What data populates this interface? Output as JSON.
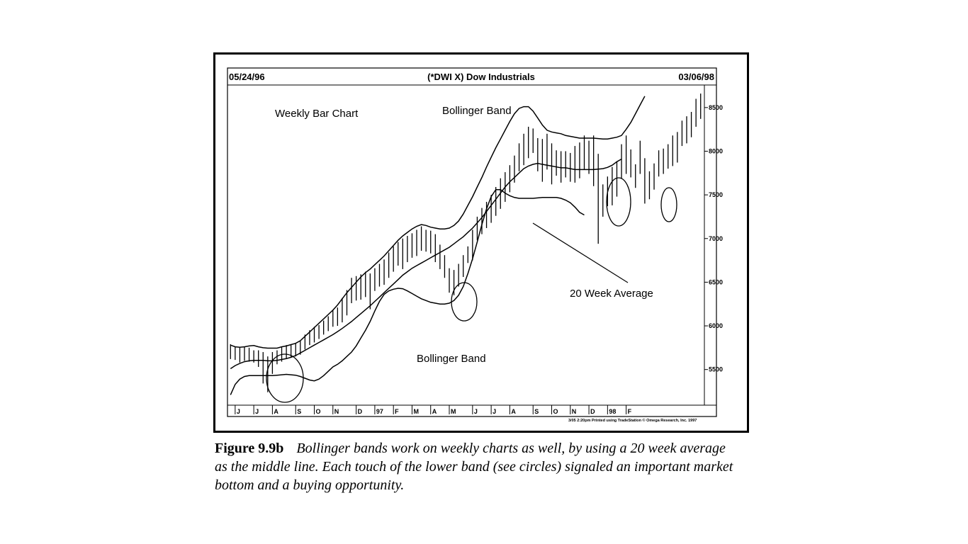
{
  "chart_data": {
    "type": "bar",
    "title": "(*DWI X) Dow Industrials",
    "start_date": "05/24/96",
    "end_date": "03/06/98",
    "ylim": [
      5100,
      8750
    ],
    "y_ticks": [
      5500,
      6000,
      6500,
      7000,
      7500,
      8000,
      8500
    ],
    "y_tick_labels": [
      "5500",
      "6000",
      "6500",
      "7000",
      "7500",
      "8000",
      "8500"
    ],
    "x_ticks": [
      {
        "week": 1,
        "label": "J"
      },
      {
        "week": 5,
        "label": "J"
      },
      {
        "week": 9,
        "label": "A"
      },
      {
        "week": 14,
        "label": "S"
      },
      {
        "week": 18,
        "label": "O"
      },
      {
        "week": 22,
        "label": "N"
      },
      {
        "week": 27,
        "label": "D"
      },
      {
        "week": 31,
        "label": "97"
      },
      {
        "week": 35,
        "label": "F"
      },
      {
        "week": 39,
        "label": "M"
      },
      {
        "week": 43,
        "label": "A"
      },
      {
        "week": 47,
        "label": "M"
      },
      {
        "week": 52,
        "label": "J"
      },
      {
        "week": 56,
        "label": "J"
      },
      {
        "week": 60,
        "label": "A"
      },
      {
        "week": 65,
        "label": "S"
      },
      {
        "week": 69,
        "label": "O"
      },
      {
        "week": 73,
        "label": "N"
      },
      {
        "week": 77,
        "label": "D"
      },
      {
        "week": 81,
        "label": "98"
      },
      {
        "week": 85,
        "label": "F"
      }
    ],
    "bars": [
      {
        "high": 5790,
        "low": 5620
      },
      {
        "high": 5760,
        "low": 5610
      },
      {
        "high": 5750,
        "low": 5580
      },
      {
        "high": 5760,
        "low": 5600
      },
      {
        "high": 5750,
        "low": 5590
      },
      {
        "high": 5720,
        "low": 5580
      },
      {
        "high": 5720,
        "low": 5530
      },
      {
        "high": 5700,
        "low": 5340
      },
      {
        "high": 5650,
        "low": 5240
      },
      {
        "high": 5700,
        "low": 5450
      },
      {
        "high": 5720,
        "low": 5560
      },
      {
        "high": 5760,
        "low": 5590
      },
      {
        "high": 5780,
        "low": 5620
      },
      {
        "high": 5790,
        "low": 5640
      },
      {
        "high": 5800,
        "low": 5650
      },
      {
        "high": 5830,
        "low": 5670
      },
      {
        "high": 5900,
        "low": 5730
      },
      {
        "high": 5950,
        "low": 5780
      },
      {
        "high": 5990,
        "low": 5810
      },
      {
        "high": 6010,
        "low": 5850
      },
      {
        "high": 6060,
        "low": 5900
      },
      {
        "high": 6110,
        "low": 5940
      },
      {
        "high": 6180,
        "low": 5990
      },
      {
        "high": 6210,
        "low": 6000
      },
      {
        "high": 6320,
        "low": 6040
      },
      {
        "high": 6410,
        "low": 6120
      },
      {
        "high": 6550,
        "low": 6260
      },
      {
        "high": 6570,
        "low": 6290
      },
      {
        "high": 6590,
        "low": 6300
      },
      {
        "high": 6620,
        "low": 6330
      },
      {
        "high": 6600,
        "low": 6190
      },
      {
        "high": 6660,
        "low": 6400
      },
      {
        "high": 6710,
        "low": 6450
      },
      {
        "high": 6760,
        "low": 6470
      },
      {
        "high": 6840,
        "low": 6550
      },
      {
        "high": 6910,
        "low": 6620
      },
      {
        "high": 6960,
        "low": 6690
      },
      {
        "high": 7000,
        "low": 6650
      },
      {
        "high": 7030,
        "low": 6730
      },
      {
        "high": 7060,
        "low": 6780
      },
      {
        "high": 7100,
        "low": 6800
      },
      {
        "high": 7140,
        "low": 6860
      },
      {
        "high": 7100,
        "low": 6850
      },
      {
        "high": 7090,
        "low": 6830
      },
      {
        "high": 7050,
        "low": 6730
      },
      {
        "high": 6930,
        "low": 6650
      },
      {
        "high": 6810,
        "low": 6550
      },
      {
        "high": 6660,
        "low": 6380
      },
      {
        "high": 6640,
        "low": 6350
      },
      {
        "high": 6710,
        "low": 6450
      },
      {
        "high": 6810,
        "low": 6560
      },
      {
        "high": 6910,
        "low": 6720
      },
      {
        "high": 7100,
        "low": 6750
      },
      {
        "high": 7250,
        "low": 6980
      },
      {
        "high": 7350,
        "low": 7050
      },
      {
        "high": 7420,
        "low": 7120
      },
      {
        "high": 7500,
        "low": 7180
      },
      {
        "high": 7590,
        "low": 7260
      },
      {
        "high": 7690,
        "low": 7340
      },
      {
        "high": 7760,
        "low": 7420
      },
      {
        "high": 7840,
        "low": 7530
      },
      {
        "high": 7950,
        "low": 7640
      },
      {
        "high": 8090,
        "low": 7770
      },
      {
        "high": 8200,
        "low": 7840
      },
      {
        "high": 8280,
        "low": 7920
      },
      {
        "high": 8260,
        "low": 7980
      },
      {
        "high": 8150,
        "low": 7770
      },
      {
        "high": 8140,
        "low": 7650
      },
      {
        "high": 8200,
        "low": 7790
      },
      {
        "high": 8090,
        "low": 7620
      },
      {
        "high": 8010,
        "low": 7720
      },
      {
        "high": 8000,
        "low": 7640
      },
      {
        "high": 8000,
        "low": 7700
      },
      {
        "high": 7980,
        "low": 7650
      },
      {
        "high": 8060,
        "low": 7640
      },
      {
        "high": 8100,
        "low": 7690
      },
      {
        "high": 8180,
        "low": 7790
      },
      {
        "high": 8120,
        "low": 7740
      },
      {
        "high": 8180,
        "low": 7600
      },
      {
        "high": 7970,
        "low": 6940
      },
      {
        "high": 7620,
        "low": 7250
      },
      {
        "high": 7710,
        "low": 7370
      },
      {
        "high": 7820,
        "low": 7380
      },
      {
        "high": 7880,
        "low": 7480
      },
      {
        "high": 8080,
        "low": 7690
      },
      {
        "high": 8180,
        "low": 7740
      },
      {
        "high": 8020,
        "low": 7700
      },
      {
        "high": 7850,
        "low": 7580
      },
      {
        "high": 8120,
        "low": 7740
      },
      {
        "high": 7920,
        "low": 7400
      },
      {
        "high": 7770,
        "low": 7450
      },
      {
        "high": 7860,
        "low": 7560
      },
      {
        "high": 8010,
        "low": 7710
      },
      {
        "high": 8030,
        "low": 7740
      },
      {
        "high": 8080,
        "low": 7800
      },
      {
        "high": 8180,
        "low": 7830
      },
      {
        "high": 8220,
        "low": 7870
      },
      {
        "high": 8350,
        "low": 8060
      },
      {
        "high": 8400,
        "low": 8090
      },
      {
        "high": 8450,
        "low": 8160
      },
      {
        "high": 8600,
        "low": 8280
      },
      {
        "high": 8660,
        "low": 8370
      }
    ],
    "series": [
      {
        "name": "Bollinger Band",
        "band": "upper",
        "values": [
          5780,
          5760,
          5755,
          5760,
          5770,
          5775,
          5760,
          5750,
          5745,
          5745,
          5745,
          5760,
          5770,
          5785,
          5800,
          5830,
          5880,
          5930,
          5980,
          6030,
          6080,
          6130,
          6180,
          6240,
          6310,
          6380,
          6440,
          6500,
          6560,
          6610,
          6650,
          6700,
          6750,
          6800,
          6860,
          6920,
          6980,
          7030,
          7070,
          7110,
          7140,
          7160,
          7150,
          7130,
          7120,
          7110,
          7110,
          7120,
          7150,
          7200,
          7280,
          7380,
          7480,
          7590,
          7700,
          7820,
          7930,
          8040,
          8140,
          8240,
          8340,
          8430,
          8490,
          8510,
          8510,
          8460,
          8380,
          8300,
          8240,
          8220,
          8210,
          8200,
          8180,
          8170,
          8160,
          8150,
          8150,
          8150,
          8150,
          8145,
          8140,
          8140,
          8150,
          8160,
          8180,
          8250,
          8330,
          8430,
          8530,
          8630
        ]
      },
      {
        "name": "20 Week Average",
        "band": "middle",
        "values": [
          5510,
          5545,
          5570,
          5590,
          5600,
          5605,
          5605,
          5605,
          5600,
          5600,
          5605,
          5615,
          5625,
          5640,
          5660,
          5690,
          5720,
          5750,
          5780,
          5810,
          5840,
          5870,
          5900,
          5935,
          5970,
          6010,
          6050,
          6095,
          6140,
          6185,
          6230,
          6280,
          6330,
          6380,
          6430,
          6480,
          6530,
          6580,
          6620,
          6660,
          6690,
          6720,
          6750,
          6780,
          6810,
          6840,
          6870,
          6900,
          6940,
          6980,
          7020,
          7070,
          7120,
          7180,
          7240,
          7310,
          7380,
          7450,
          7520,
          7590,
          7650,
          7700,
          7750,
          7800,
          7830,
          7850,
          7860,
          7850,
          7840,
          7830,
          7820,
          7810,
          7810,
          7800,
          7790,
          7790,
          7790,
          7790,
          7790,
          7795,
          7800,
          7815,
          7840,
          7880,
          7910
        ]
      },
      {
        "name": "Bollinger Band",
        "band": "lower",
        "values": [
          5210,
          5330,
          5390,
          5420,
          5430,
          5430,
          5430,
          5430,
          5430,
          5430,
          5435,
          5440,
          5445,
          5440,
          5435,
          5420,
          5400,
          5380,
          5370,
          5390,
          5430,
          5480,
          5530,
          5560,
          5600,
          5650,
          5700,
          5770,
          5860,
          5950,
          6050,
          6170,
          6280,
          6360,
          6400,
          6420,
          6430,
          6425,
          6400,
          6370,
          6340,
          6310,
          6290,
          6270,
          6260,
          6250,
          6250,
          6260,
          6290,
          6350,
          6450,
          6600,
          6770,
          6960,
          7160,
          7340,
          7480,
          7560,
          7560,
          7520,
          7490,
          7470,
          7460,
          7460,
          7460,
          7460,
          7465,
          7470,
          7470,
          7470,
          7470,
          7460,
          7440,
          7410,
          7360,
          7300,
          7270
        ]
      }
    ],
    "annotations": [
      {
        "text": "Weekly Bar Chart"
      },
      {
        "text": "Bollinger Band"
      },
      {
        "text": "20 Week Average"
      },
      {
        "text": "Bollinger Band"
      }
    ],
    "footer": "3/05  2:20pm Printed using TradeStation © Omega Research, Inc. 1997",
    "grid": false
  },
  "caption": {
    "label": "Figure 9.9b",
    "text": "Bollinger bands work on weekly charts as well, by using a 20 week average as the middle line. Each touch of the lower band (see circles) signaled an important market bottom and a buying opportunity."
  }
}
